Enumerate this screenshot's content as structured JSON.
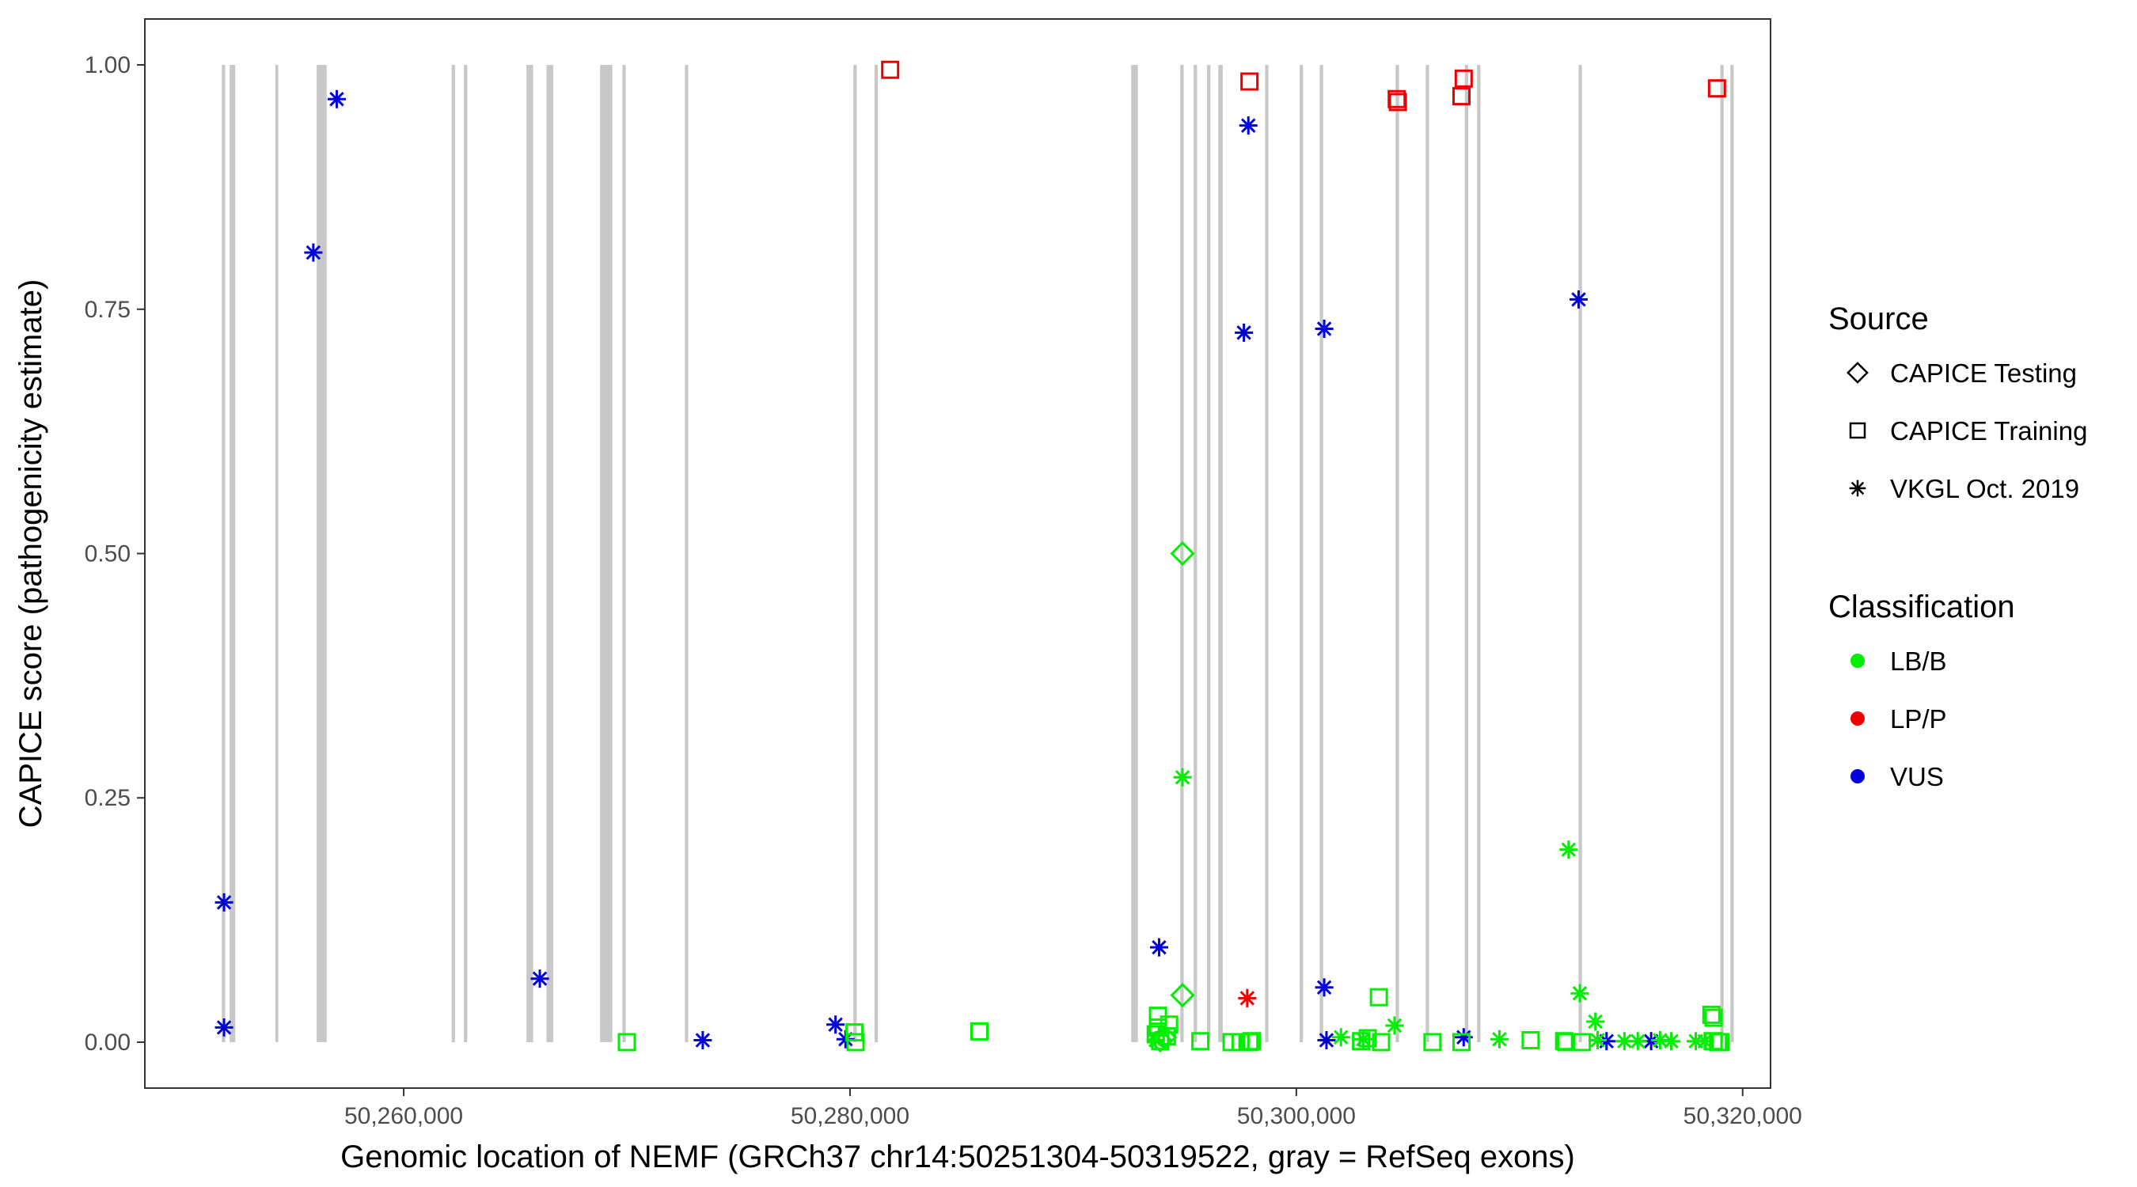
{
  "chart_data": {
    "type": "scatter",
    "xlabel": "Genomic location of NEMF (GRCh37 chr14:50251304-50319522, gray = RefSeq exons)",
    "ylabel": "CAPICE score (pathogenicity estimate)",
    "xlim": [
      50248400,
      50321250
    ],
    "ylim": [
      -0.047,
      1.047
    ],
    "x_ticks": [
      50260000,
      50280000,
      50300000,
      50320000
    ],
    "x_tick_labels": [
      "50,260,000",
      "50,280,000",
      "50,300,000",
      "50,320,000"
    ],
    "y_ticks": [
      0,
      0.25,
      0.5,
      0.75,
      1.0
    ],
    "y_tick_labels": [
      "0.00",
      "0.25",
      "0.50",
      "0.75",
      "1.00"
    ],
    "grid": false,
    "exon_color": "#c8c8c8",
    "exons": [
      [
        50251850,
        50252000
      ],
      [
        50252200,
        50252450
      ],
      [
        50254250,
        50254380
      ],
      [
        50256100,
        50256550
      ],
      [
        50262150,
        50262300
      ],
      [
        50262700,
        50262850
      ],
      [
        50265500,
        50265800
      ],
      [
        50266400,
        50266700
      ],
      [
        50268800,
        50269350
      ],
      [
        50269800,
        50269950
      ],
      [
        50272600,
        50272750
      ],
      [
        50280150,
        50280300
      ],
      [
        50281100,
        50281250
      ],
      [
        50292600,
        50292900
      ],
      [
        50294800,
        50294950
      ],
      [
        50295400,
        50295550
      ],
      [
        50296000,
        50296150
      ],
      [
        50296500,
        50296700
      ],
      [
        50298600,
        50298750
      ],
      [
        50300150,
        50300300
      ],
      [
        50301050,
        50301200
      ],
      [
        50304450,
        50304600
      ],
      [
        50305800,
        50305950
      ],
      [
        50307550,
        50307700
      ],
      [
        50308100,
        50308250
      ],
      [
        50312650,
        50312800
      ],
      [
        50319000,
        50319150
      ],
      [
        50319450,
        50319600
      ]
    ],
    "legend": {
      "position": "right",
      "source_title": "Source",
      "source_items": [
        {
          "label": "CAPICE Testing",
          "shape": "diamond"
        },
        {
          "label": "CAPICE Training",
          "shape": "square"
        },
        {
          "label": "VKGL Oct. 2019",
          "shape": "asterisk"
        }
      ],
      "class_title": "Classification",
      "class_items": [
        {
          "label": "LB/B",
          "color": "#00ee00"
        },
        {
          "label": "LP/P",
          "color": "#ee0000"
        },
        {
          "label": "VUS",
          "color": "#0000dd"
        }
      ]
    },
    "series": [
      {
        "name": "VKGL Oct. 2019 / VUS",
        "shape": "asterisk",
        "color": "#0000dd",
        "points": [
          [
            50251950,
            0.143
          ],
          [
            50251950,
            0.015
          ],
          [
            50255950,
            0.808
          ],
          [
            50257000,
            0.965
          ],
          [
            50266100,
            0.065
          ],
          [
            50273400,
            0.002
          ],
          [
            50279350,
            0.018
          ],
          [
            50279800,
            0.003
          ],
          [
            50293850,
            0.097
          ],
          [
            50297650,
            0.726
          ],
          [
            50297850,
            0.938
          ],
          [
            50301250,
            0.056
          ],
          [
            50301250,
            0.73
          ],
          [
            50301350,
            0.002
          ],
          [
            50307500,
            0.005
          ],
          [
            50312650,
            0.76
          ],
          [
            50313900,
            0.001
          ],
          [
            50315900,
            0.001
          ]
        ]
      },
      {
        "name": "VKGL Oct. 2019 / LB/B",
        "shape": "asterisk",
        "color": "#00ee00",
        "points": [
          [
            50294900,
            0.271
          ],
          [
            50312200,
            0.197
          ],
          [
            50312700,
            0.05
          ],
          [
            50313400,
            0.021
          ],
          [
            50304400,
            0.017
          ],
          [
            50302000,
            0.005
          ],
          [
            50303000,
            0.003
          ],
          [
            50309100,
            0.003
          ],
          [
            50313500,
            0.002
          ],
          [
            50314700,
            0.001
          ],
          [
            50315300,
            0.001
          ],
          [
            50316300,
            0.002
          ],
          [
            50316800,
            0.001
          ],
          [
            50317900,
            0.001
          ],
          [
            50318300,
            0.001
          ],
          [
            50293700,
            0.002
          ]
        ]
      },
      {
        "name": "VKGL Oct. 2019 / LP/P",
        "shape": "asterisk",
        "color": "#ee0000",
        "points": [
          [
            50297800,
            0.045
          ]
        ]
      },
      {
        "name": "CAPICE Testing / LB/B",
        "shape": "diamond",
        "color": "#00ee00",
        "points": [
          [
            50294900,
            0.5
          ],
          [
            50294900,
            0.048
          ],
          [
            50294100,
            0.005
          ],
          [
            50293900,
            0.002
          ]
        ]
      },
      {
        "name": "CAPICE Training / LP/P",
        "shape": "square",
        "color": "#ee0000",
        "points": [
          [
            50281800,
            0.995
          ],
          [
            50297900,
            0.983
          ],
          [
            50304500,
            0.965
          ],
          [
            50304550,
            0.962
          ],
          [
            50307500,
            0.986
          ],
          [
            50307400,
            0.968
          ],
          [
            50318850,
            0.976
          ]
        ]
      },
      {
        "name": "CAPICE Training / LB/B",
        "shape": "square",
        "color": "#00ee00",
        "points": [
          [
            50270000,
            0.0
          ],
          [
            50280200,
            0.01
          ],
          [
            50280250,
            0.0
          ],
          [
            50285800,
            0.011
          ],
          [
            50293800,
            0.027
          ],
          [
            50293800,
            0.015
          ],
          [
            50293700,
            0.008
          ],
          [
            50294300,
            0.018
          ],
          [
            50294200,
            0.006
          ],
          [
            50293900,
            0.001
          ],
          [
            50295700,
            0.001
          ],
          [
            50297100,
            0.0
          ],
          [
            50297500,
            0.0
          ],
          [
            50297900,
            0.0
          ],
          [
            50298000,
            0.001
          ],
          [
            50302900,
            0.001
          ],
          [
            50303200,
            0.004
          ],
          [
            50303700,
            0.046
          ],
          [
            50303800,
            0.0
          ],
          [
            50306100,
            0.0
          ],
          [
            50307400,
            0.0
          ],
          [
            50310500,
            0.002
          ],
          [
            50312000,
            0.001
          ],
          [
            50312100,
            0.0
          ],
          [
            50312800,
            0.0
          ],
          [
            50318600,
            0.028
          ],
          [
            50318700,
            0.025
          ],
          [
            50318700,
            0.001
          ],
          [
            50318900,
            0.0
          ],
          [
            50319000,
            0.0
          ]
        ]
      }
    ]
  }
}
